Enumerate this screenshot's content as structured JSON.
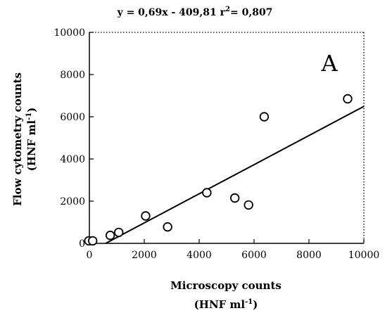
{
  "chart_data": {
    "type": "scatter",
    "annotation_equation": {
      "prefix": "y = 0,69x - 409,81  r",
      "superscript": "2",
      "suffix": "= 0,807"
    },
    "panel_label": "A",
    "xlabel": {
      "line1": "Microscopy counts",
      "line2_prefix": "(HNF ml",
      "line2_sup": "-1",
      "line2_suffix": ")"
    },
    "ylabel": {
      "line1": "Flow cytometry counts",
      "line2_prefix": "(HNF ml",
      "line2_sup": "-1",
      "line2_suffix": ")"
    },
    "xlim": [
      0,
      10000
    ],
    "ylim": [
      0,
      10000
    ],
    "x_ticks": [
      0,
      2000,
      4000,
      6000,
      8000,
      10000
    ],
    "y_ticks": [
      0,
      2000,
      4000,
      6000,
      8000,
      10000
    ],
    "x_tick_labels": [
      "0",
      "2000",
      "4000",
      "6000",
      "8000",
      "10000"
    ],
    "y_tick_labels": [
      "0",
      "2000",
      "4000",
      "6000",
      "8000",
      "10000"
    ],
    "points": [
      {
        "x": -20,
        "y": 120
      },
      {
        "x": 120,
        "y": 120
      },
      {
        "x": 760,
        "y": 380
      },
      {
        "x": 1070,
        "y": 520
      },
      {
        "x": 2050,
        "y": 1300
      },
      {
        "x": 2850,
        "y": 780
      },
      {
        "x": 4280,
        "y": 2400
      },
      {
        "x": 5300,
        "y": 2150
      },
      {
        "x": 5800,
        "y": 1820
      },
      {
        "x": 6370,
        "y": 6000
      },
      {
        "x": 9410,
        "y": 6850
      }
    ],
    "regression": {
      "slope": 0.69,
      "intercept": -409.81,
      "r2": 0.807
    },
    "grid": false,
    "colors": {
      "axis": "#000000",
      "marker_stroke": "#000000",
      "marker_fill": "#ffffff",
      "regression_line": "#000000"
    }
  }
}
